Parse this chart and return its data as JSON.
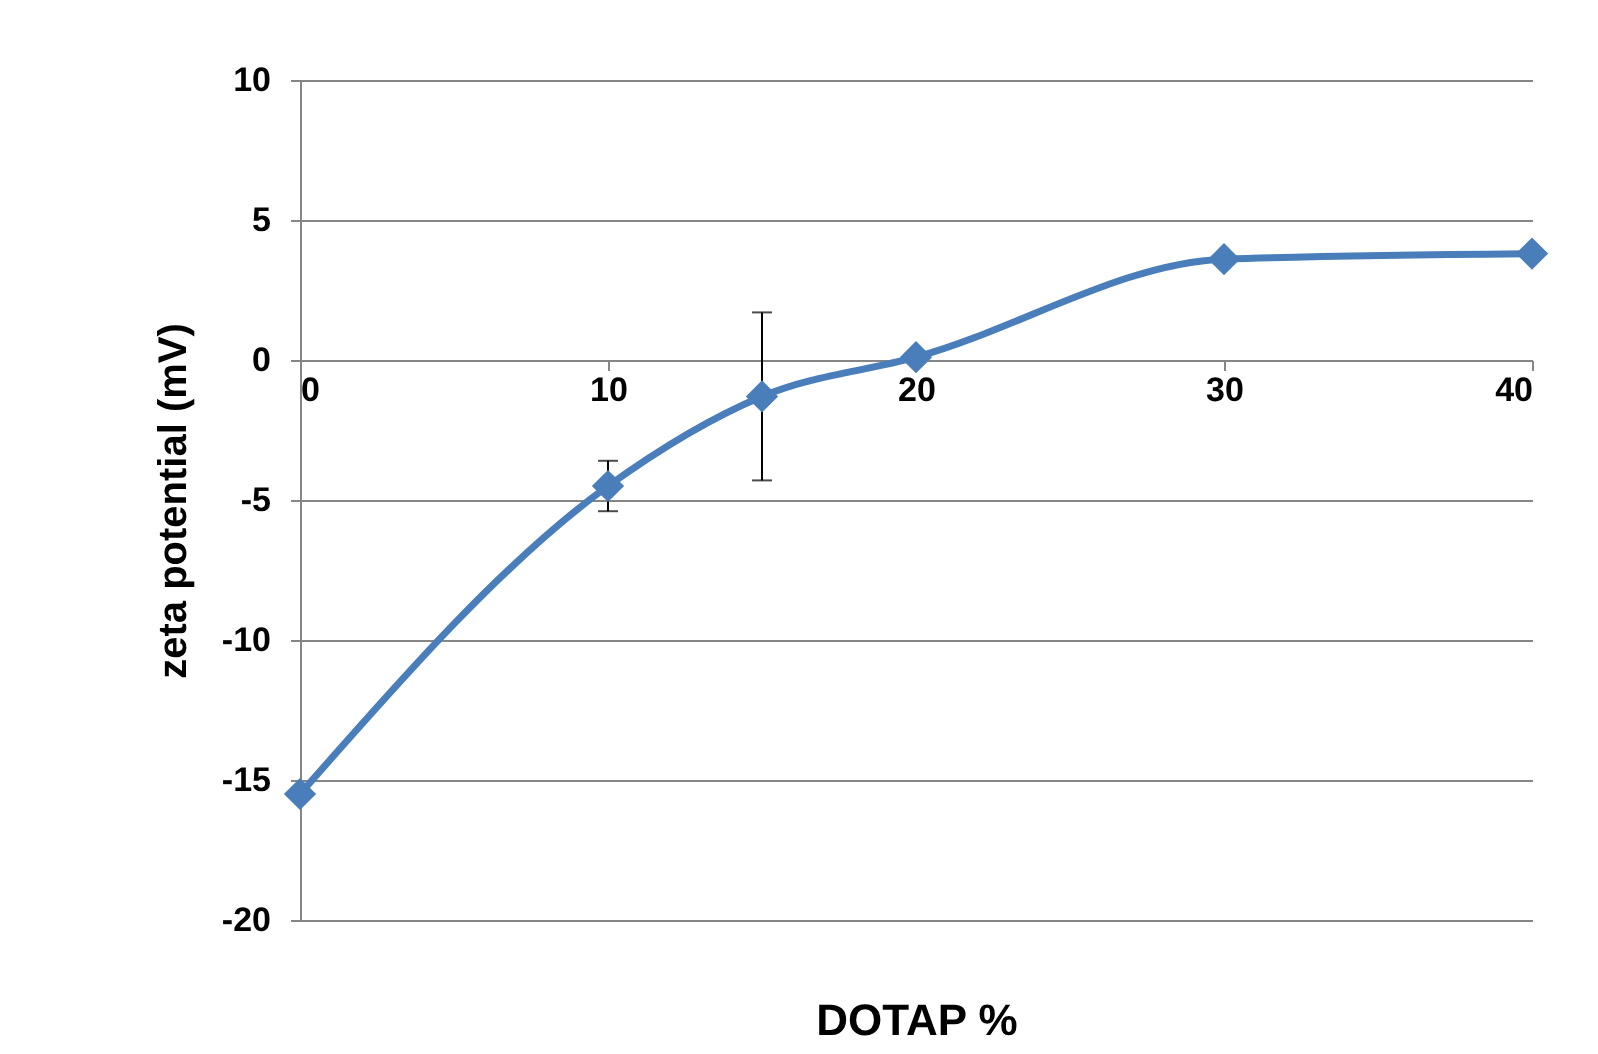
{
  "chart_data": {
    "type": "line",
    "xlabel": "DOTAP %",
    "ylabel": "zeta potential (mV)",
    "x": [
      0,
      10,
      15,
      20,
      30,
      40
    ],
    "series": [
      {
        "color": "#4a7ebb",
        "values": [
          -15.5,
          -4.5,
          -1.3,
          0.1,
          3.6,
          3.8
        ],
        "errors": [
          null,
          0.9,
          3,
          null,
          null,
          null
        ]
      }
    ],
    "xlim": [
      0,
      40
    ],
    "xticks": [
      0,
      10,
      20,
      30,
      40
    ],
    "ylim": [
      -20,
      10
    ],
    "yticks": [
      -20,
      -15,
      -10,
      -5,
      0,
      5,
      10
    ],
    "grid": "y",
    "marker": "diamond",
    "line_style": "solid"
  }
}
